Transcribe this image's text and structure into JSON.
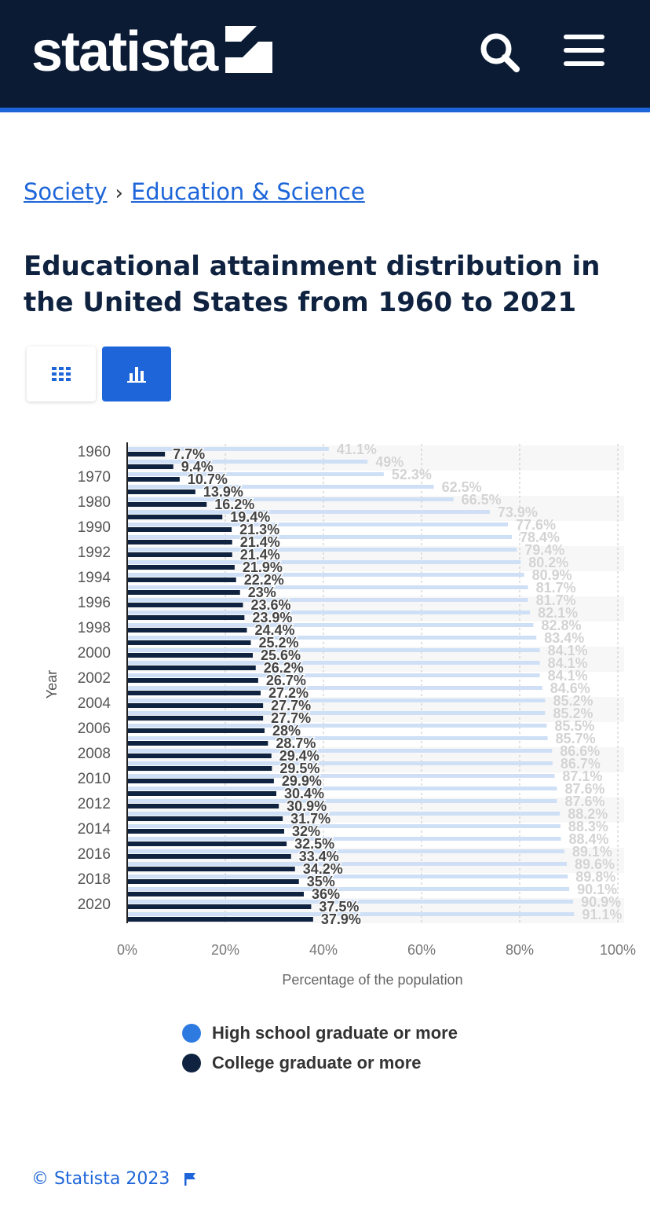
{
  "header": {
    "logo_text": "statista",
    "colors": {
      "bg": "#0b1b34",
      "accent": "#1d65d8"
    },
    "search_icon": "search-icon",
    "menu_icon": "hamburger-menu-icon"
  },
  "breadcrumb": {
    "items": [
      "Society",
      "Education & Science"
    ],
    "separator": "›"
  },
  "page": {
    "title": "Educational attainment distribution in the United States from 1960 to 2021"
  },
  "view_toggle": {
    "table_icon": "table-grid-icon",
    "chart_icon": "bar-chart-icon",
    "active": "chart"
  },
  "chart_data": {
    "type": "bar",
    "orientation": "horizontal",
    "categories": [
      "1960",
      "1965",
      "1970",
      "1975",
      "1980",
      "1985",
      "1990",
      "1991",
      "1992",
      "1993",
      "1994",
      "1995",
      "1996",
      "1997",
      "1998",
      "1999",
      "2000",
      "2001",
      "2002",
      "2003",
      "2004",
      "2005",
      "2006",
      "2007",
      "2008",
      "2009",
      "2010",
      "2011",
      "2012",
      "2013",
      "2014",
      "2015",
      "2016",
      "2017",
      "2018",
      "2019",
      "2020",
      "2021"
    ],
    "series": [
      {
        "name": "High school graduate or more",
        "color": "#cfe0f6",
        "legend_color": "#2d7be0",
        "label_color": "#d3d3d3",
        "values": [
          41.1,
          49,
          52.3,
          62.5,
          66.5,
          73.9,
          77.6,
          78.4,
          79.4,
          80.2,
          80.9,
          81.7,
          81.7,
          82.1,
          82.8,
          83.4,
          84.1,
          84.1,
          84.1,
          84.6,
          85.2,
          85.2,
          85.5,
          85.7,
          86.6,
          86.7,
          87.1,
          87.6,
          87.6,
          88.2,
          88.3,
          88.4,
          89.1,
          89.6,
          89.8,
          90.1,
          90.9,
          91.1
        ]
      },
      {
        "name": "College graduate or more",
        "color": "#0f2340",
        "legend_color": "#0f2340",
        "label_color": "#444444",
        "values": [
          7.7,
          9.4,
          10.7,
          13.9,
          16.2,
          19.4,
          21.3,
          21.4,
          21.4,
          21.9,
          22.2,
          23,
          23.6,
          23.9,
          24.4,
          25.2,
          25.6,
          26.2,
          26.7,
          27.2,
          27.7,
          27.7,
          28,
          28.7,
          29.4,
          29.5,
          29.9,
          30.4,
          30.9,
          31.7,
          32,
          32.5,
          33.4,
          34.2,
          35,
          36,
          37.5,
          37.9
        ]
      }
    ],
    "ylabel": "Year",
    "xlabel": "Percentage of the population",
    "xlim": [
      0,
      100
    ],
    "xticks": [
      "0%",
      "20%",
      "40%",
      "60%",
      "80%",
      "100%"
    ],
    "visible_year_ticks": [
      "1960",
      "1970",
      "1980",
      "1990",
      "1992",
      "1994",
      "1996",
      "1998",
      "2000",
      "2002",
      "2004",
      "2006",
      "2008",
      "2010",
      "2012",
      "2014",
      "2016",
      "2018",
      "2020"
    ],
    "grid": "vertical dashed",
    "legend_position": "bottom"
  },
  "footer": {
    "copyright": "© Statista 2023",
    "flag_icon": "flag-icon"
  }
}
